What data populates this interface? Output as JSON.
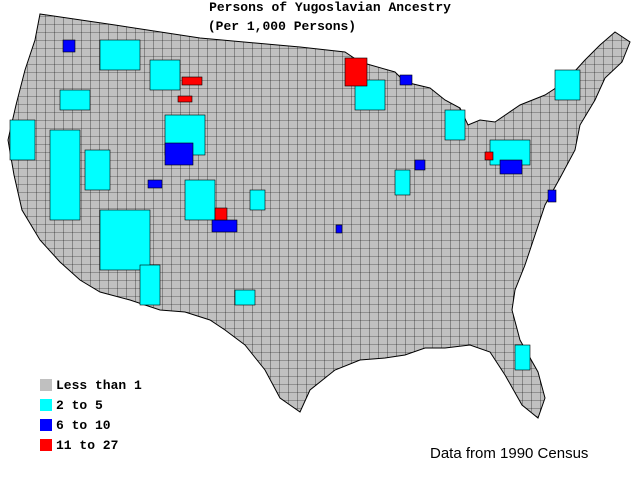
{
  "title": "Persons of Yugoslavian Ancestry",
  "subtitle": "(Per 1,000 Persons)",
  "legend": [
    {
      "label": "Less than 1",
      "color": "#c0c0c0"
    },
    {
      "label": "2 to 5",
      "color": "#00ffff"
    },
    {
      "label": "6 to 10",
      "color": "#0000ff"
    },
    {
      "label": "11 to 27",
      "color": "#ff0000"
    }
  ],
  "source": "Data from 1990 Census"
}
